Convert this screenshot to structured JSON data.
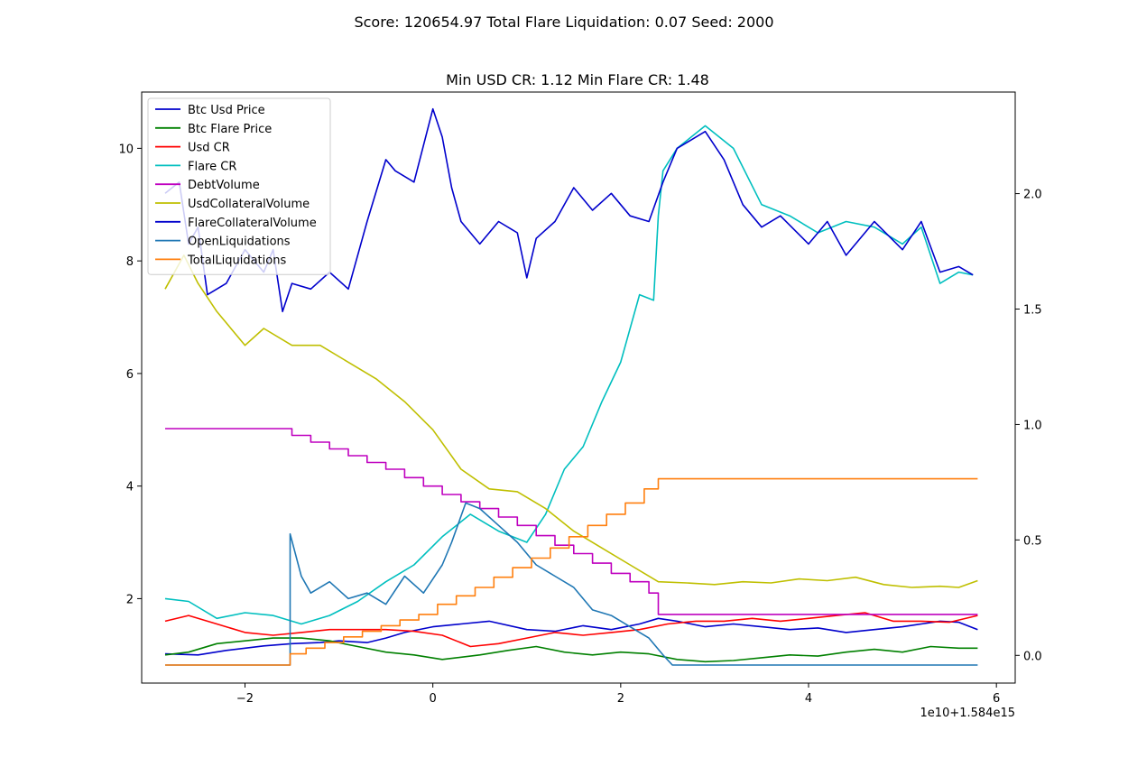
{
  "suptitle": "Score: 120654.97 Total Flare Liquidation: 0.07 Seed: 2000",
  "title": "Min USD CR: 1.12 Min Flare CR: 1.48",
  "chart_data": {
    "type": "line",
    "x_offset_text": "1e10+1.584e15",
    "xlim": [
      -3.1,
      6.2
    ],
    "ylim_left": [
      0.5,
      11.0
    ],
    "ylim_right": [
      -0.12,
      2.44
    ],
    "x_ticks": [
      -2,
      0,
      2,
      4,
      6
    ],
    "x_tick_labels": [
      "−2",
      "0",
      "2",
      "4",
      "6"
    ],
    "y_left_ticks": [
      2,
      4,
      6,
      8,
      10
    ],
    "y_left_tick_labels": [
      "2",
      "4",
      "6",
      "8",
      "10"
    ],
    "y_right_ticks": [
      0.0,
      0.5,
      1.0,
      1.5,
      2.0
    ],
    "y_right_tick_labels": [
      "0.0",
      "0.5",
      "1.0",
      "1.5",
      "2.0"
    ],
    "grid": false,
    "legend_position": "upper-left",
    "series": [
      {
        "name": "Btc Usd Price",
        "color": "#0000cc",
        "axis": "left",
        "x": [
          -2.85,
          -2.5,
          -2.2,
          -1.8,
          -1.5,
          -1.2,
          -1.0,
          -0.7,
          -0.5,
          -0.3,
          0.0,
          0.3,
          0.6,
          1.0,
          1.3,
          1.6,
          1.9,
          2.2,
          2.4,
          2.6,
          2.9,
          3.2,
          3.5,
          3.8,
          4.1,
          4.4,
          4.7,
          5.0,
          5.2,
          5.4,
          5.6,
          5.8
        ],
        "y": [
          1.02,
          1.0,
          1.08,
          1.16,
          1.2,
          1.22,
          1.25,
          1.22,
          1.3,
          1.4,
          1.5,
          1.55,
          1.6,
          1.45,
          1.42,
          1.52,
          1.45,
          1.55,
          1.65,
          1.6,
          1.5,
          1.55,
          1.5,
          1.45,
          1.48,
          1.4,
          1.45,
          1.5,
          1.55,
          1.6,
          1.58,
          1.45
        ]
      },
      {
        "name": "Btc Flare Price",
        "color": "#008000",
        "axis": "left",
        "x": [
          -2.85,
          -2.6,
          -2.3,
          -2.0,
          -1.7,
          -1.4,
          -1.1,
          -0.8,
          -0.5,
          -0.2,
          0.1,
          0.5,
          0.8,
          1.1,
          1.4,
          1.7,
          2.0,
          2.3,
          2.6,
          2.9,
          3.2,
          3.5,
          3.8,
          4.1,
          4.4,
          4.7,
          5.0,
          5.3,
          5.6,
          5.8
        ],
        "y": [
          1.0,
          1.05,
          1.2,
          1.25,
          1.3,
          1.3,
          1.25,
          1.15,
          1.05,
          1.0,
          0.92,
          1.0,
          1.08,
          1.15,
          1.05,
          1.0,
          1.05,
          1.02,
          0.92,
          0.88,
          0.9,
          0.95,
          1.0,
          0.98,
          1.05,
          1.1,
          1.05,
          1.15,
          1.12,
          1.12
        ]
      },
      {
        "name": "Usd CR",
        "color": "#ff0000",
        "axis": "left",
        "x": [
          -2.85,
          -2.6,
          -2.3,
          -2.0,
          -1.7,
          -1.4,
          -1.1,
          -0.8,
          -0.5,
          -0.2,
          0.1,
          0.4,
          0.7,
          1.0,
          1.3,
          1.6,
          1.9,
          2.2,
          2.5,
          2.8,
          3.1,
          3.4,
          3.7,
          4.0,
          4.3,
          4.6,
          4.9,
          5.2,
          5.5,
          5.8
        ],
        "y": [
          1.6,
          1.7,
          1.55,
          1.4,
          1.35,
          1.4,
          1.45,
          1.45,
          1.45,
          1.42,
          1.35,
          1.15,
          1.2,
          1.3,
          1.4,
          1.35,
          1.4,
          1.45,
          1.55,
          1.6,
          1.6,
          1.65,
          1.6,
          1.65,
          1.7,
          1.75,
          1.6,
          1.6,
          1.58,
          1.7
        ]
      },
      {
        "name": "Flare CR",
        "color": "#00bfbf",
        "axis": "left",
        "x": [
          -2.85,
          -2.6,
          -2.3,
          -2.0,
          -1.7,
          -1.4,
          -1.1,
          -0.8,
          -0.5,
          -0.2,
          0.1,
          0.4,
          0.7,
          1.0,
          1.2,
          1.4,
          1.6,
          1.8,
          2.0,
          2.2,
          2.35,
          2.4,
          2.45,
          2.6,
          2.9,
          3.2,
          3.5,
          3.8,
          4.1,
          4.4,
          4.7,
          5.0,
          5.2,
          5.4,
          5.6,
          5.75
        ],
        "y": [
          2.0,
          1.95,
          1.65,
          1.75,
          1.7,
          1.55,
          1.7,
          1.95,
          2.3,
          2.6,
          3.1,
          3.5,
          3.2,
          3.0,
          3.5,
          4.3,
          4.7,
          5.5,
          6.2,
          7.4,
          7.3,
          8.8,
          9.6,
          10.0,
          10.4,
          10.0,
          9.0,
          8.8,
          8.5,
          8.7,
          8.6,
          8.3,
          8.6,
          7.6,
          7.8,
          7.75
        ]
      },
      {
        "name": "DebtVolume",
        "color": "#bf00bf",
        "axis": "left",
        "x": [
          -2.85,
          -1.5,
          -1.5,
          -1.3,
          -1.3,
          -1.1,
          -1.1,
          -0.9,
          -0.9,
          -0.7,
          -0.7,
          -0.5,
          -0.5,
          -0.3,
          -0.3,
          -0.1,
          -0.1,
          0.1,
          0.1,
          0.3,
          0.3,
          0.5,
          0.5,
          0.7,
          0.7,
          0.9,
          0.9,
          1.1,
          1.1,
          1.3,
          1.3,
          1.5,
          1.5,
          1.7,
          1.7,
          1.9,
          1.9,
          2.1,
          2.1,
          2.3,
          2.3,
          2.4,
          2.4,
          5.8
        ],
        "y": [
          5.02,
          5.02,
          4.9,
          4.9,
          4.78,
          4.78,
          4.66,
          4.66,
          4.54,
          4.54,
          4.42,
          4.42,
          4.3,
          4.3,
          4.15,
          4.15,
          4.0,
          4.0,
          3.85,
          3.85,
          3.72,
          3.72,
          3.6,
          3.6,
          3.45,
          3.45,
          3.3,
          3.3,
          3.12,
          3.12,
          2.95,
          2.95,
          2.8,
          2.8,
          2.63,
          2.63,
          2.45,
          2.45,
          2.3,
          2.3,
          2.1,
          2.1,
          1.72,
          1.72
        ]
      },
      {
        "name": "UsdCollateralVolume",
        "color": "#bfbf00",
        "axis": "left",
        "x": [
          -2.85,
          -2.65,
          -2.5,
          -2.3,
          -2.0,
          -1.8,
          -1.5,
          -1.2,
          -0.9,
          -0.6,
          -0.3,
          0.0,
          0.3,
          0.6,
          0.9,
          1.2,
          1.5,
          1.8,
          2.1,
          2.4,
          2.7,
          3.0,
          3.3,
          3.6,
          3.9,
          4.2,
          4.5,
          4.8,
          5.1,
          5.4,
          5.6,
          5.8
        ],
        "y": [
          7.5,
          8.1,
          7.6,
          7.1,
          6.5,
          6.8,
          6.5,
          6.5,
          6.2,
          5.9,
          5.5,
          5.0,
          4.3,
          3.95,
          3.9,
          3.6,
          3.2,
          2.9,
          2.6,
          2.3,
          2.28,
          2.25,
          2.3,
          2.28,
          2.35,
          2.32,
          2.38,
          2.25,
          2.2,
          2.22,
          2.2,
          2.32
        ]
      },
      {
        "name": "FlareCollateralVolume",
        "color": "#0000cc",
        "axis": "left",
        "x": [
          -2.85,
          -2.7,
          -2.6,
          -2.5,
          -2.4,
          -2.2,
          -2.0,
          -1.8,
          -1.7,
          -1.6,
          -1.5,
          -1.3,
          -1.1,
          -0.9,
          -0.7,
          -0.5,
          -0.4,
          -0.2,
          0.0,
          0.1,
          0.2,
          0.3,
          0.5,
          0.7,
          0.9,
          1.0,
          1.1,
          1.3,
          1.5,
          1.7,
          1.9,
          2.1,
          2.3,
          2.45,
          2.6,
          2.9,
          3.1,
          3.3,
          3.5,
          3.7,
          4.0,
          4.2,
          4.4,
          4.7,
          5.0,
          5.2,
          5.4,
          5.6,
          5.75
        ],
        "y": [
          9.2,
          9.4,
          8.3,
          8.6,
          7.4,
          7.6,
          8.2,
          7.8,
          8.2,
          7.1,
          7.6,
          7.5,
          7.8,
          7.5,
          8.7,
          9.8,
          9.6,
          9.4,
          10.7,
          10.2,
          9.3,
          8.7,
          8.3,
          8.7,
          8.5,
          7.7,
          8.4,
          8.7,
          9.3,
          8.9,
          9.2,
          8.8,
          8.7,
          9.4,
          10.0,
          10.3,
          9.8,
          9.0,
          8.6,
          8.8,
          8.3,
          8.7,
          8.1,
          8.7,
          8.2,
          8.7,
          7.8,
          7.9,
          7.75
        ]
      },
      {
        "name": "OpenLiquidations",
        "color": "#1f77b4",
        "axis": "left",
        "x": [
          -2.85,
          -1.52,
          -1.52,
          -1.4,
          -1.3,
          -1.1,
          -0.9,
          -0.7,
          -0.5,
          -0.3,
          -0.1,
          0.1,
          0.2,
          0.35,
          0.5,
          0.7,
          0.9,
          1.1,
          1.3,
          1.5,
          1.7,
          1.9,
          2.1,
          2.3,
          2.45,
          2.55,
          5.8
        ],
        "y": [
          0.82,
          0.82,
          3.15,
          2.4,
          2.1,
          2.3,
          2.0,
          2.1,
          1.9,
          2.4,
          2.1,
          2.6,
          3.0,
          3.7,
          3.6,
          3.3,
          3.0,
          2.6,
          2.4,
          2.2,
          1.8,
          1.7,
          1.5,
          1.3,
          1.0,
          0.82,
          0.82
        ]
      },
      {
        "name": "TotalLiquidations",
        "color": "#ff7f0e",
        "axis": "left",
        "x": [
          -2.85,
          -1.52,
          -1.52,
          -1.35,
          -1.35,
          -1.15,
          -1.15,
          -0.95,
          -0.95,
          -0.75,
          -0.75,
          -0.55,
          -0.55,
          -0.35,
          -0.35,
          -0.15,
          -0.15,
          0.05,
          0.05,
          0.25,
          0.25,
          0.45,
          0.45,
          0.65,
          0.65,
          0.85,
          0.85,
          1.05,
          1.05,
          1.25,
          1.25,
          1.45,
          1.45,
          1.65,
          1.65,
          1.85,
          1.85,
          2.05,
          2.05,
          2.25,
          2.25,
          2.4,
          2.4,
          5.8
        ],
        "y": [
          0.82,
          0.82,
          1.02,
          1.02,
          1.12,
          1.12,
          1.22,
          1.22,
          1.32,
          1.32,
          1.42,
          1.42,
          1.52,
          1.52,
          1.62,
          1.62,
          1.72,
          1.72,
          1.9,
          1.9,
          2.05,
          2.05,
          2.2,
          2.2,
          2.38,
          2.38,
          2.55,
          2.55,
          2.72,
          2.72,
          2.9,
          2.9,
          3.1,
          3.1,
          3.3,
          3.3,
          3.5,
          3.5,
          3.7,
          3.7,
          3.95,
          3.95,
          4.13,
          4.13
        ]
      }
    ]
  }
}
